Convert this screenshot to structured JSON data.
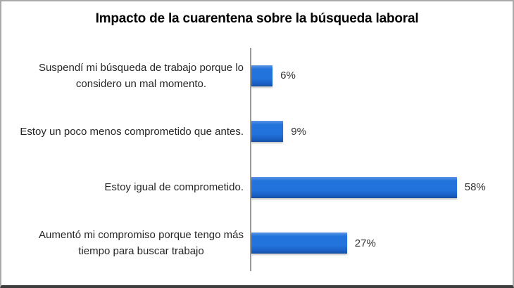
{
  "chart_data": {
    "type": "bar",
    "orientation": "horizontal",
    "title": "Impacto de la cuarentena sobre la búsqueda laboral",
    "categories": [
      "Suspendí mi búsqueda de trabajo porque lo\nconsidero un mal momento.",
      "Estoy un poco menos comprometido que antes.",
      "Estoy igual de comprometido.",
      "Aumentó mi compromiso porque tengo más\ntiempo para buscar trabajo"
    ],
    "values": [
      6,
      9,
      58,
      27
    ],
    "value_labels": [
      "6%",
      "9%",
      "58%",
      "27%"
    ],
    "xlim": [
      0,
      64
    ],
    "grid": false,
    "legend": false,
    "bar_color": "#2273dc"
  },
  "colors": {
    "bar_top": "#5b95e5",
    "bar_main": "#2273dc",
    "bar_bottom": "#1a5fc4",
    "bar_edge": "#174f9e",
    "axis_line": "#9a9a9a",
    "title_text": "#000000",
    "category_text": "#262626",
    "value_text": "#333333",
    "frame_border": "#a9a9a9",
    "frame_bottom": "#3d3d3d",
    "background": "#ffffff"
  }
}
